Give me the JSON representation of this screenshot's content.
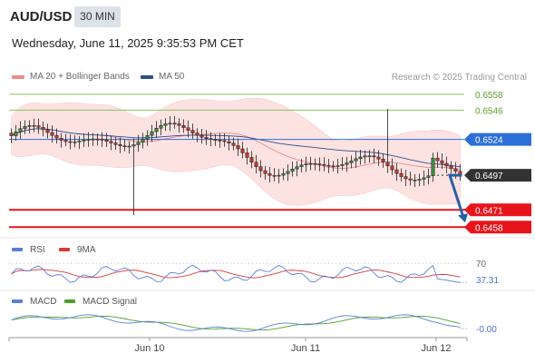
{
  "header": {
    "symbol": "AUD/USD",
    "timeframe": "30 MIN",
    "datetime": "Wednesday, June 11, 2025 9:35:53 PM CET"
  },
  "legend": {
    "bollinger": "MA 20 + Bollinger Bands",
    "ma50": "MA 50",
    "credit": "Research © 2025 Trading Central"
  },
  "colors": {
    "resistance": "#8dc063",
    "support": "#e8141c",
    "pivot": "#2c6fd6",
    "last": "#333333",
    "bollinger_fill": "#fde2e2",
    "ma20": "#e88a8a",
    "ma50": "#2d4f8a",
    "arrow": "#2a5ea6",
    "rsi": "#5a7fd6",
    "rsi_ma": "#d63a3a",
    "macd": "#5a7fd6",
    "macd_signal": "#4aa02c"
  },
  "chart_data": [
    {
      "type": "candlestick",
      "title": "AUD/USD 30 MIN",
      "ylim": [
        0.645,
        0.6562
      ],
      "levels": [
        {
          "label": "0.6558",
          "value": 0.6558,
          "kind": "resistance"
        },
        {
          "label": "0.6546",
          "value": 0.6546,
          "kind": "resistance"
        },
        {
          "label": "0.6524",
          "value": 0.6524,
          "kind": "pivot"
        },
        {
          "label": "0.6497",
          "value": 0.6497,
          "kind": "last"
        },
        {
          "label": "0.6471",
          "value": 0.6471,
          "kind": "support"
        },
        {
          "label": "0.6458",
          "value": 0.6458,
          "kind": "support"
        }
      ],
      "x_ticks": [
        "Jun 10",
        "Jun 11",
        "Jun 12"
      ],
      "forecast_target": 0.6458
    },
    {
      "type": "line",
      "title": "RSI",
      "series": [
        {
          "name": "RSI"
        },
        {
          "name": "9MA"
        }
      ],
      "levels": [
        {
          "label": "70",
          "value": 70
        }
      ],
      "current_label": "37.31",
      "ylim": [
        30,
        75
      ]
    },
    {
      "type": "line",
      "title": "MACD",
      "series": [
        {
          "name": "MACD"
        },
        {
          "name": "MACD Signal"
        }
      ],
      "current_label": "-0.00"
    }
  ]
}
